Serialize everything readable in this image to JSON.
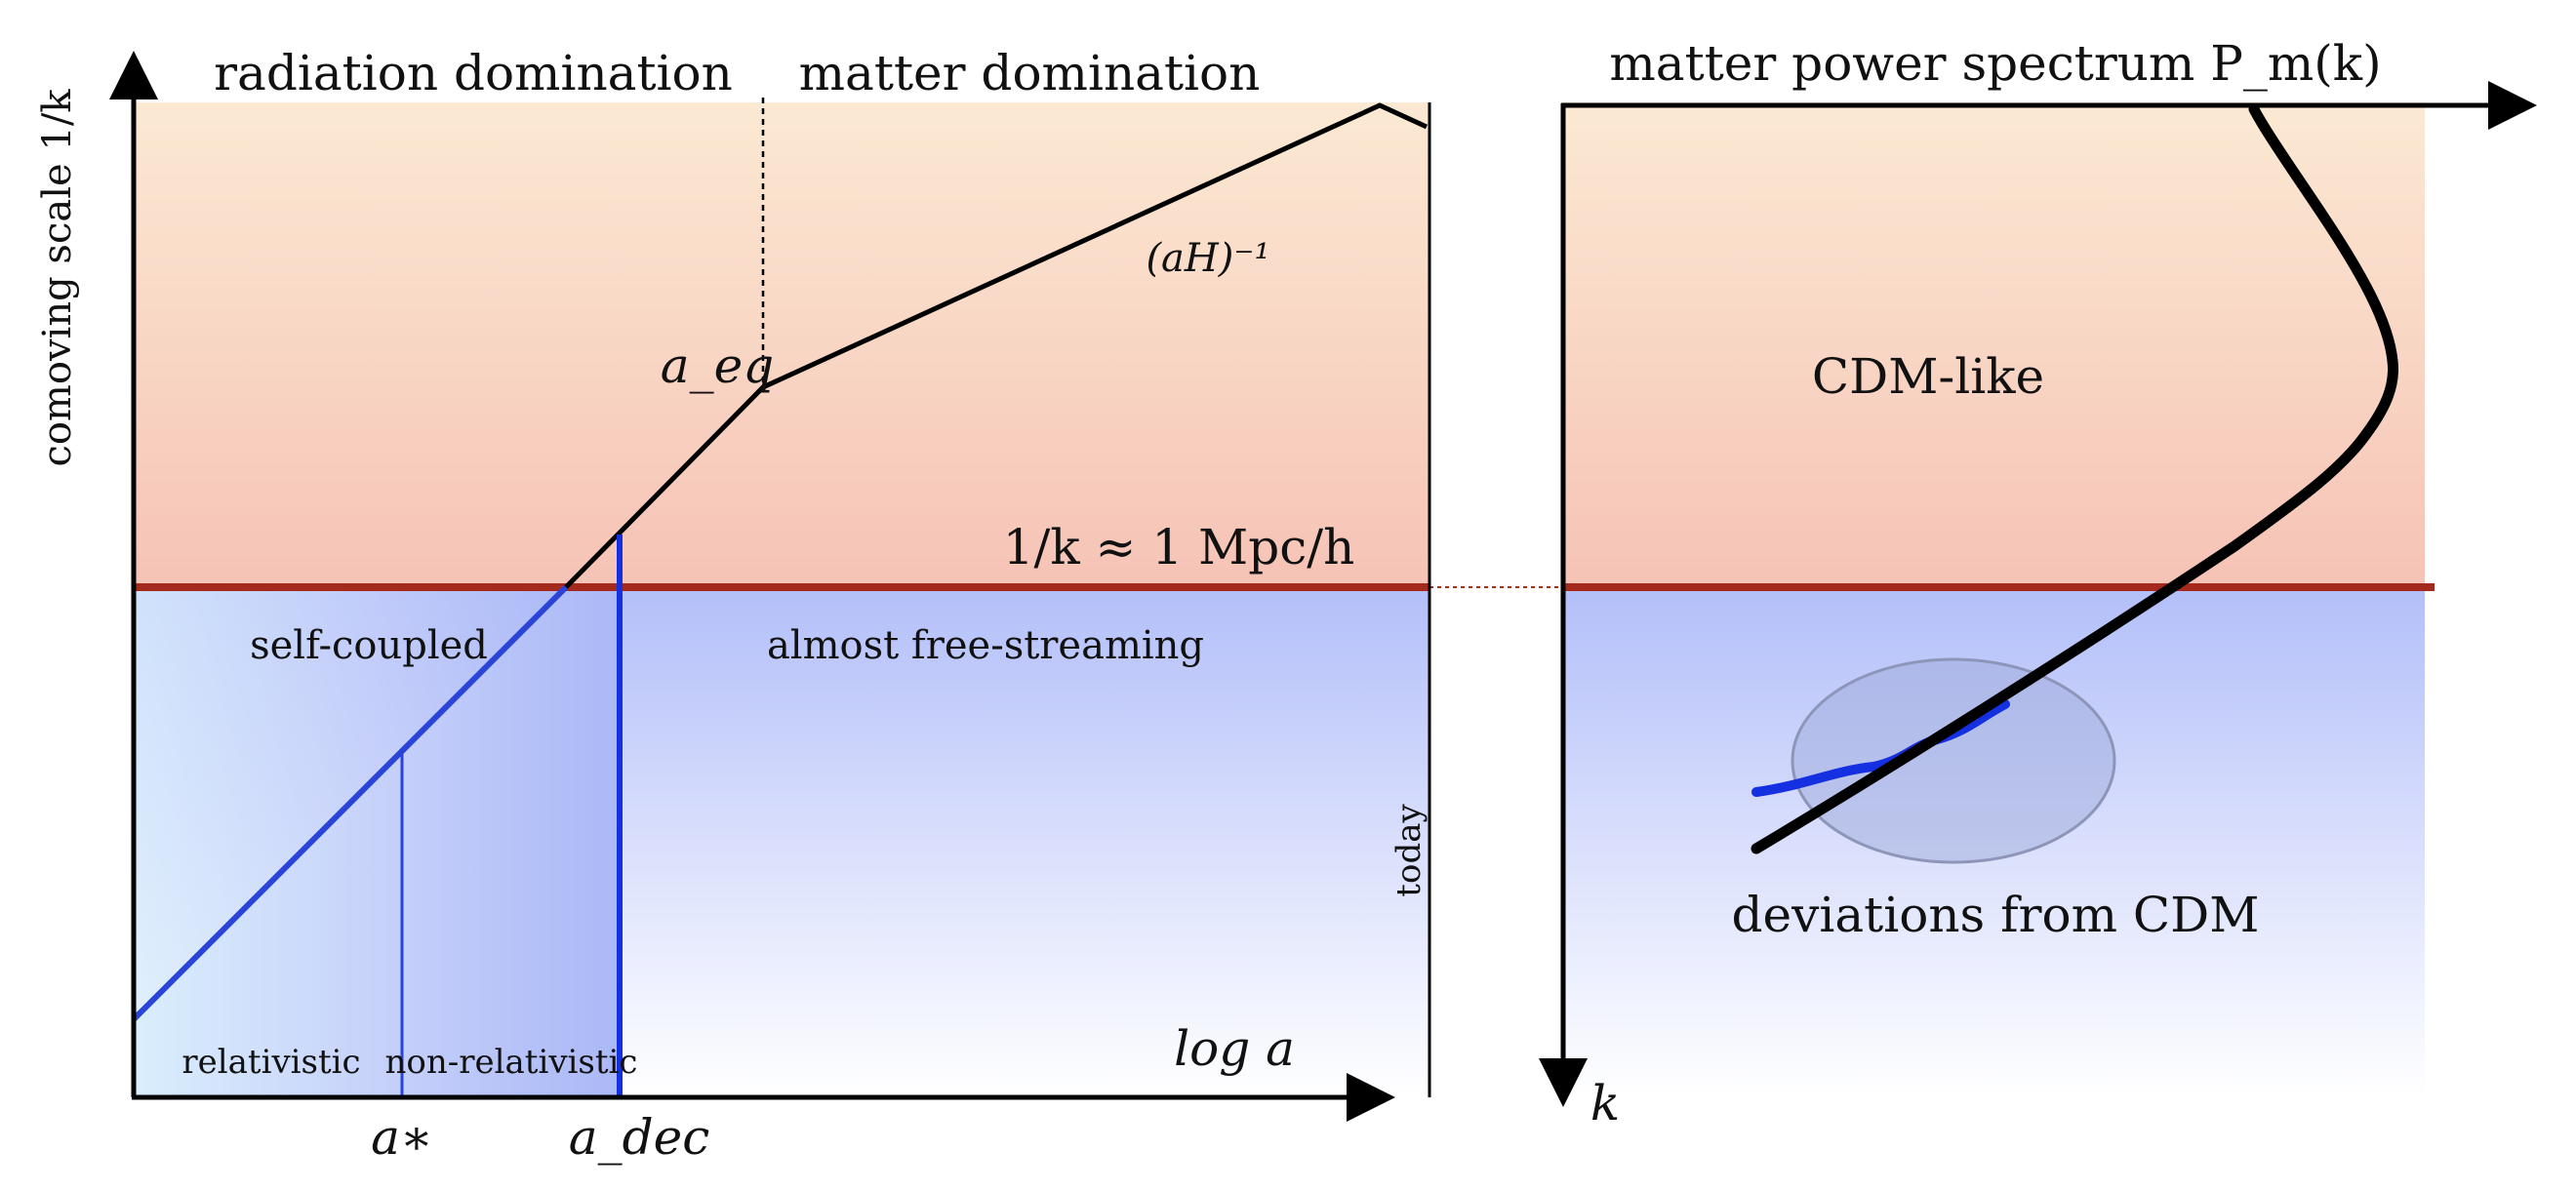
{
  "left_panel": {
    "y_axis_label": "comoving scale 1/k",
    "x_axis_label": "log a",
    "epoch_labels": {
      "radiation": "radiation domination",
      "matter": "matter domination"
    },
    "horizon_label": "(aH)⁻¹",
    "a_eq_label": "a_eq",
    "scale_line_label": "1/k ≈ 1 Mpc/h",
    "region_labels": {
      "self_coupled": "self-coupled",
      "free_streaming": "almost free-streaming",
      "relativistic": "relativistic",
      "non_relativistic": "non-relativistic"
    },
    "today_label": "today",
    "x_ticks": {
      "a_star": "a∗",
      "a_dec": "a_dec"
    }
  },
  "right_panel": {
    "title": "matter power spectrum P_m(k)",
    "k_axis_label": "k",
    "cdm_like_label": "CDM-like",
    "deviations_label": "deviations from CDM"
  },
  "colors": {
    "warm_top": "#fbe9d3",
    "warm_bottom": "#f6c3b6",
    "cool_top": "#b3bff9",
    "cool_bottom": "#ffffff",
    "scale_line": "#a52a1e",
    "blue_curve": "#1530e0",
    "black_curve": "#000000"
  }
}
